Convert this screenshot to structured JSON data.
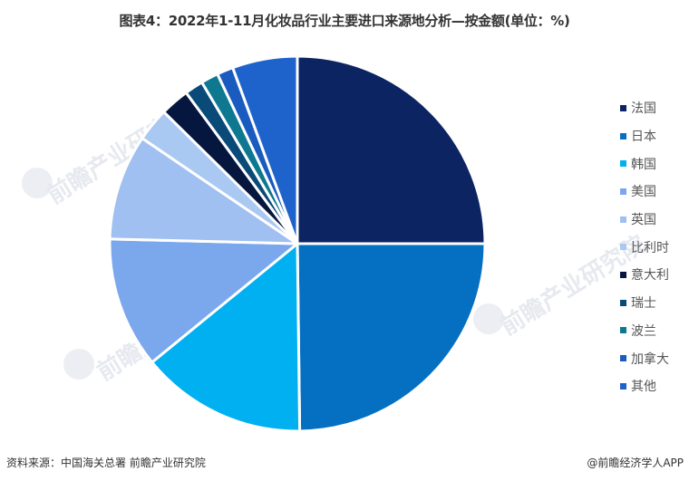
{
  "title": "图表4：2022年1-11月化妆品行业主要进口来源地分析—按金额(单位：%)",
  "source": "资料来源：中国海关总署 前瞻产业研究院",
  "credit": "@前瞻经济学人APP",
  "watermark": {
    "text": "前瞻产业研究院"
  },
  "chart_data": {
    "type": "pie",
    "title": "图表4：2022年1-11月化妆品行业主要进口来源地分析—按金额(单位：%)",
    "unit": "%",
    "start_angle_deg": 0,
    "direction": "clockwise",
    "legend_position": "right",
    "categories": [
      "法国",
      "日本",
      "韩国",
      "美国",
      "英国",
      "比利时",
      "意大利",
      "瑞士",
      "波兰",
      "加拿大",
      "其他"
    ],
    "values": [
      25.0,
      24.8,
      14.3,
      11.3,
      9.1,
      2.9,
      2.5,
      1.6,
      1.5,
      1.4,
      5.6
    ],
    "colors": [
      "#0c2461",
      "#0570c1",
      "#00b0f0",
      "#7ba7ec",
      "#9fc0f0",
      "#a9c8f2",
      "#05163f",
      "#0a4a78",
      "#0e7891",
      "#1a5bbf",
      "#1e63cc"
    ]
  },
  "legend": {
    "items": [
      {
        "label": "法国",
        "color": "#0c2461"
      },
      {
        "label": "日本",
        "color": "#0570c1"
      },
      {
        "label": "韩国",
        "color": "#00b0f0"
      },
      {
        "label": "美国",
        "color": "#7ba7ec"
      },
      {
        "label": "英国",
        "color": "#9fc0f0"
      },
      {
        "label": "比利时",
        "color": "#a9c8f2"
      },
      {
        "label": "意大利",
        "color": "#05163f"
      },
      {
        "label": "瑞士",
        "color": "#0a4a78"
      },
      {
        "label": "波兰",
        "color": "#0e7891"
      },
      {
        "label": "加拿大",
        "color": "#1a5bbf"
      },
      {
        "label": "其他",
        "color": "#1e63cc"
      }
    ]
  }
}
